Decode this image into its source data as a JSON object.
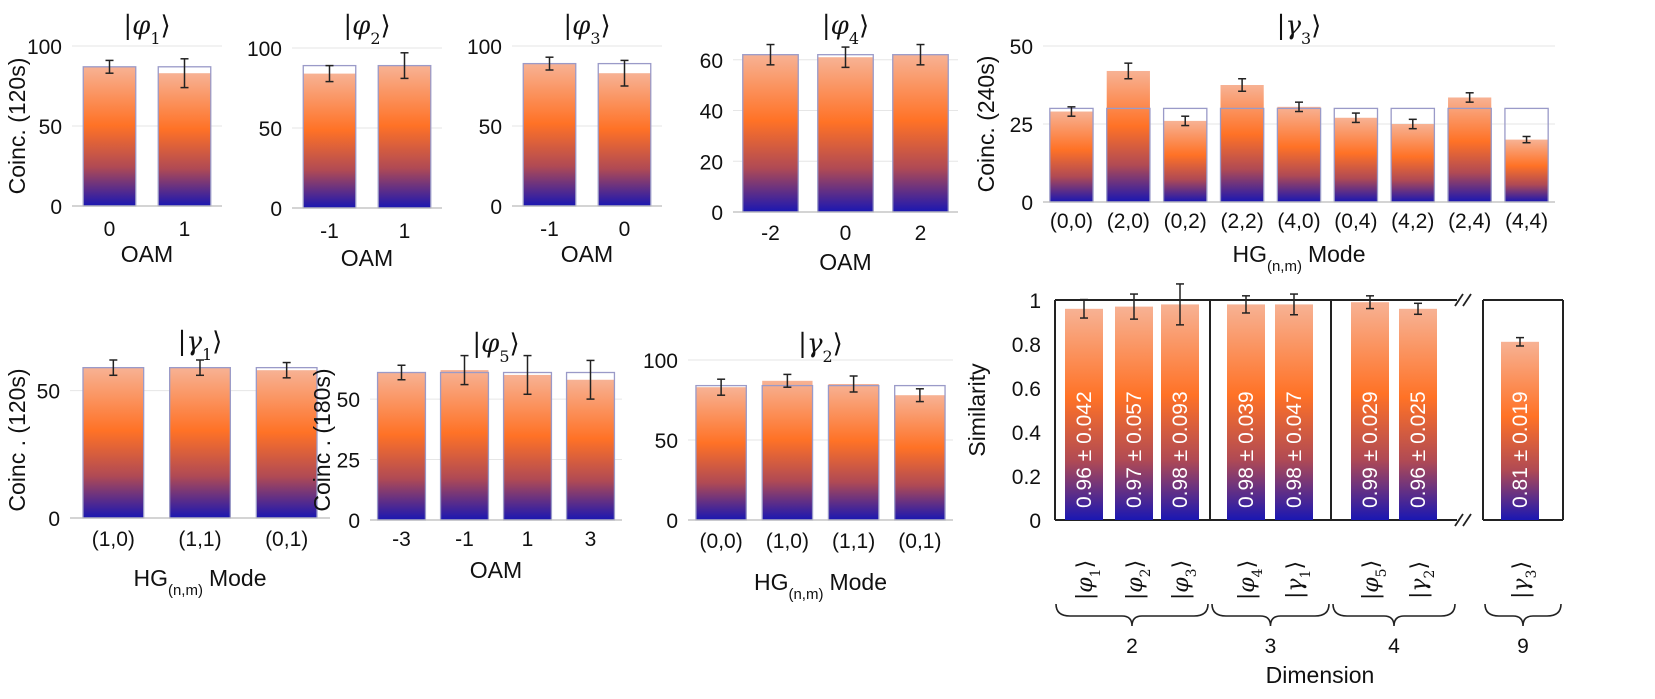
{
  "colors": {
    "bar_top": "#f7b294",
    "bar_mid": "#ff7226",
    "bar_mid2": "#b04a54",
    "bar_bottom": "#1a17b2",
    "ideal": "#9a9ac8",
    "axis": "#222222",
    "grid": "#e6e6e6"
  },
  "chart_data": [
    {
      "id": "phi1",
      "type": "bar",
      "title": {
        "var": "φ",
        "sub": "1"
      },
      "categories": [
        "0",
        "1"
      ],
      "values": [
        87,
        83
      ],
      "errors": [
        4,
        9
      ],
      "ideal": [
        87,
        87
      ],
      "ylim": [
        0,
        100
      ],
      "yticks": [
        0,
        50,
        100
      ],
      "ytick_labels": [
        "0",
        "50",
        "100"
      ],
      "xlabel": "OAM",
      "ylabel": "Coinc. (120s)"
    },
    {
      "id": "phi2",
      "type": "bar",
      "title": {
        "var": "φ",
        "sub": "2"
      },
      "categories": [
        "-1",
        "1"
      ],
      "values": [
        84,
        89
      ],
      "errors": [
        5,
        8
      ],
      "ideal": [
        89,
        89
      ],
      "ylim": [
        0,
        100
      ],
      "yticks": [
        0,
        50,
        100
      ],
      "ytick_labels": [
        "0",
        "50",
        "100"
      ],
      "xlabel": "OAM",
      "ylabel": ""
    },
    {
      "id": "phi3",
      "type": "bar",
      "title": {
        "var": "φ",
        "sub": "3"
      },
      "categories": [
        "-1",
        "0"
      ],
      "values": [
        89,
        83
      ],
      "errors": [
        4,
        8
      ],
      "ideal": [
        89,
        89
      ],
      "ylim": [
        0,
        100
      ],
      "yticks": [
        0,
        50,
        100
      ],
      "ytick_labels": [
        "0",
        "50",
        "100"
      ],
      "xlabel": "OAM",
      "ylabel": ""
    },
    {
      "id": "phi4",
      "type": "bar",
      "title": {
        "var": "φ",
        "sub": "4"
      },
      "categories": [
        "-2",
        "0",
        "2"
      ],
      "values": [
        62,
        61,
        62
      ],
      "errors": [
        4,
        4,
        4
      ],
      "ideal": [
        62,
        62,
        62
      ],
      "ylim": [
        0,
        67
      ],
      "yticks": [
        0,
        20,
        40,
        60
      ],
      "ytick_labels": [
        "0",
        "20",
        "40",
        "60"
      ],
      "xlabel": "OAM",
      "ylabel": ""
    },
    {
      "id": "gamma3",
      "type": "bar",
      "title": {
        "var": "γ",
        "sub": "3"
      },
      "categories": [
        "(0,0)",
        "(2,0)",
        "(0,2)",
        "(2,2)",
        "(4,0)",
        "(0,4)",
        "(4,2)",
        "(2,4)",
        "(4,4)"
      ],
      "values": [
        29,
        42,
        26,
        37.5,
        30.5,
        27,
        25,
        33.5,
        20
      ],
      "errors": [
        1.5,
        2.5,
        1.5,
        2,
        1.5,
        1.5,
        1.5,
        1.5,
        1
      ],
      "ideal": [
        30,
        30,
        30,
        30,
        30,
        30,
        30,
        30,
        30
      ],
      "ylim": [
        0,
        50
      ],
      "yticks": [
        0,
        25,
        50
      ],
      "ytick_labels": [
        "0",
        "25",
        "50"
      ],
      "xlabel": "Mode",
      "xlabel_prefix": "HG",
      "xlabel_sub": "(n,m)",
      "ylabel": "Coinc. (240s)"
    },
    {
      "id": "gamma1",
      "type": "bar",
      "title": {
        "var": "γ",
        "sub": "1"
      },
      "categories": [
        "(1,0)",
        "(1,1)",
        "(0,1)"
      ],
      "values": [
        59,
        59,
        58
      ],
      "errors": [
        3,
        3,
        3
      ],
      "ideal": [
        59,
        59,
        59
      ],
      "ylim": [
        0,
        62
      ],
      "yticks": [
        0,
        50
      ],
      "ytick_labels": [
        "0",
        "50"
      ],
      "xlabel": "Mode",
      "xlabel_prefix": "HG",
      "xlabel_sub": "(n,m)",
      "ylabel": "Coinc . (120s)"
    },
    {
      "id": "phi5",
      "type": "bar",
      "title": {
        "var": "φ",
        "sub": "5"
      },
      "categories": [
        "-3",
        "-1",
        "1",
        "3"
      ],
      "values": [
        61,
        62,
        60,
        58
      ],
      "errors": [
        3,
        6,
        8,
        8
      ],
      "ideal": [
        61,
        61,
        61,
        61
      ],
      "ylim": [
        0,
        67
      ],
      "yticks": [
        0,
        25,
        50
      ],
      "ytick_labels": [
        "0",
        "25",
        "50"
      ],
      "xlabel": "OAM",
      "ylabel": "Coinc . (180s)"
    },
    {
      "id": "gamma2",
      "type": "bar",
      "title": {
        "var": "γ",
        "sub": "2"
      },
      "categories": [
        "(0,0)",
        "(1,0)",
        "(1,1)",
        "(0,1)"
      ],
      "values": [
        83,
        87,
        85,
        78
      ],
      "errors": [
        5,
        4,
        5,
        4
      ],
      "ideal": [
        84,
        84,
        84,
        84
      ],
      "ylim": [
        0,
        100
      ],
      "yticks": [
        0,
        50,
        100
      ],
      "ytick_labels": [
        "0",
        "50",
        "100"
      ],
      "xlabel": "Mode",
      "xlabel_prefix": "HG",
      "xlabel_sub": "(n,m)",
      "ylabel": ""
    },
    {
      "id": "similarity",
      "type": "bar",
      "categories": [
        {
          "var": "φ",
          "sub": "1"
        },
        {
          "var": "φ",
          "sub": "2"
        },
        {
          "var": "φ",
          "sub": "3"
        },
        {
          "var": "φ",
          "sub": "4"
        },
        {
          "var": "γ",
          "sub": "1"
        },
        {
          "var": "φ",
          "sub": "5"
        },
        {
          "var": "γ",
          "sub": "2"
        },
        {
          "var": "γ",
          "sub": "3"
        }
      ],
      "values": [
        0.96,
        0.97,
        0.98,
        0.98,
        0.98,
        0.99,
        0.96,
        0.81
      ],
      "errors": [
        0.042,
        0.057,
        0.093,
        0.039,
        0.047,
        0.029,
        0.025,
        0.019
      ],
      "value_labels": [
        "0.96 ± 0.042",
        "0.97 ± 0.057",
        "0.98 ± 0.093",
        "0.98 ± 0.039",
        "0.98 ± 0.047",
        "0.99 ± 0.029",
        "0.96 ± 0.025",
        "0.81 ± 0.019"
      ],
      "groups": [
        {
          "label": "2",
          "members": [
            0,
            1,
            2
          ]
        },
        {
          "label": "3",
          "members": [
            3,
            4
          ]
        },
        {
          "label": "4",
          "members": [
            5,
            6
          ]
        },
        {
          "label": "9",
          "members": [
            7
          ]
        }
      ],
      "ylim": [
        0,
        1
      ],
      "yticks": [
        0,
        0.2,
        0.4,
        0.6,
        0.8,
        1
      ],
      "ytick_labels": [
        "0",
        "0.2",
        "0.4",
        "0.6",
        "0.8",
        "1"
      ],
      "xlabel": "Dimension",
      "ylabel": "Similarity"
    }
  ]
}
